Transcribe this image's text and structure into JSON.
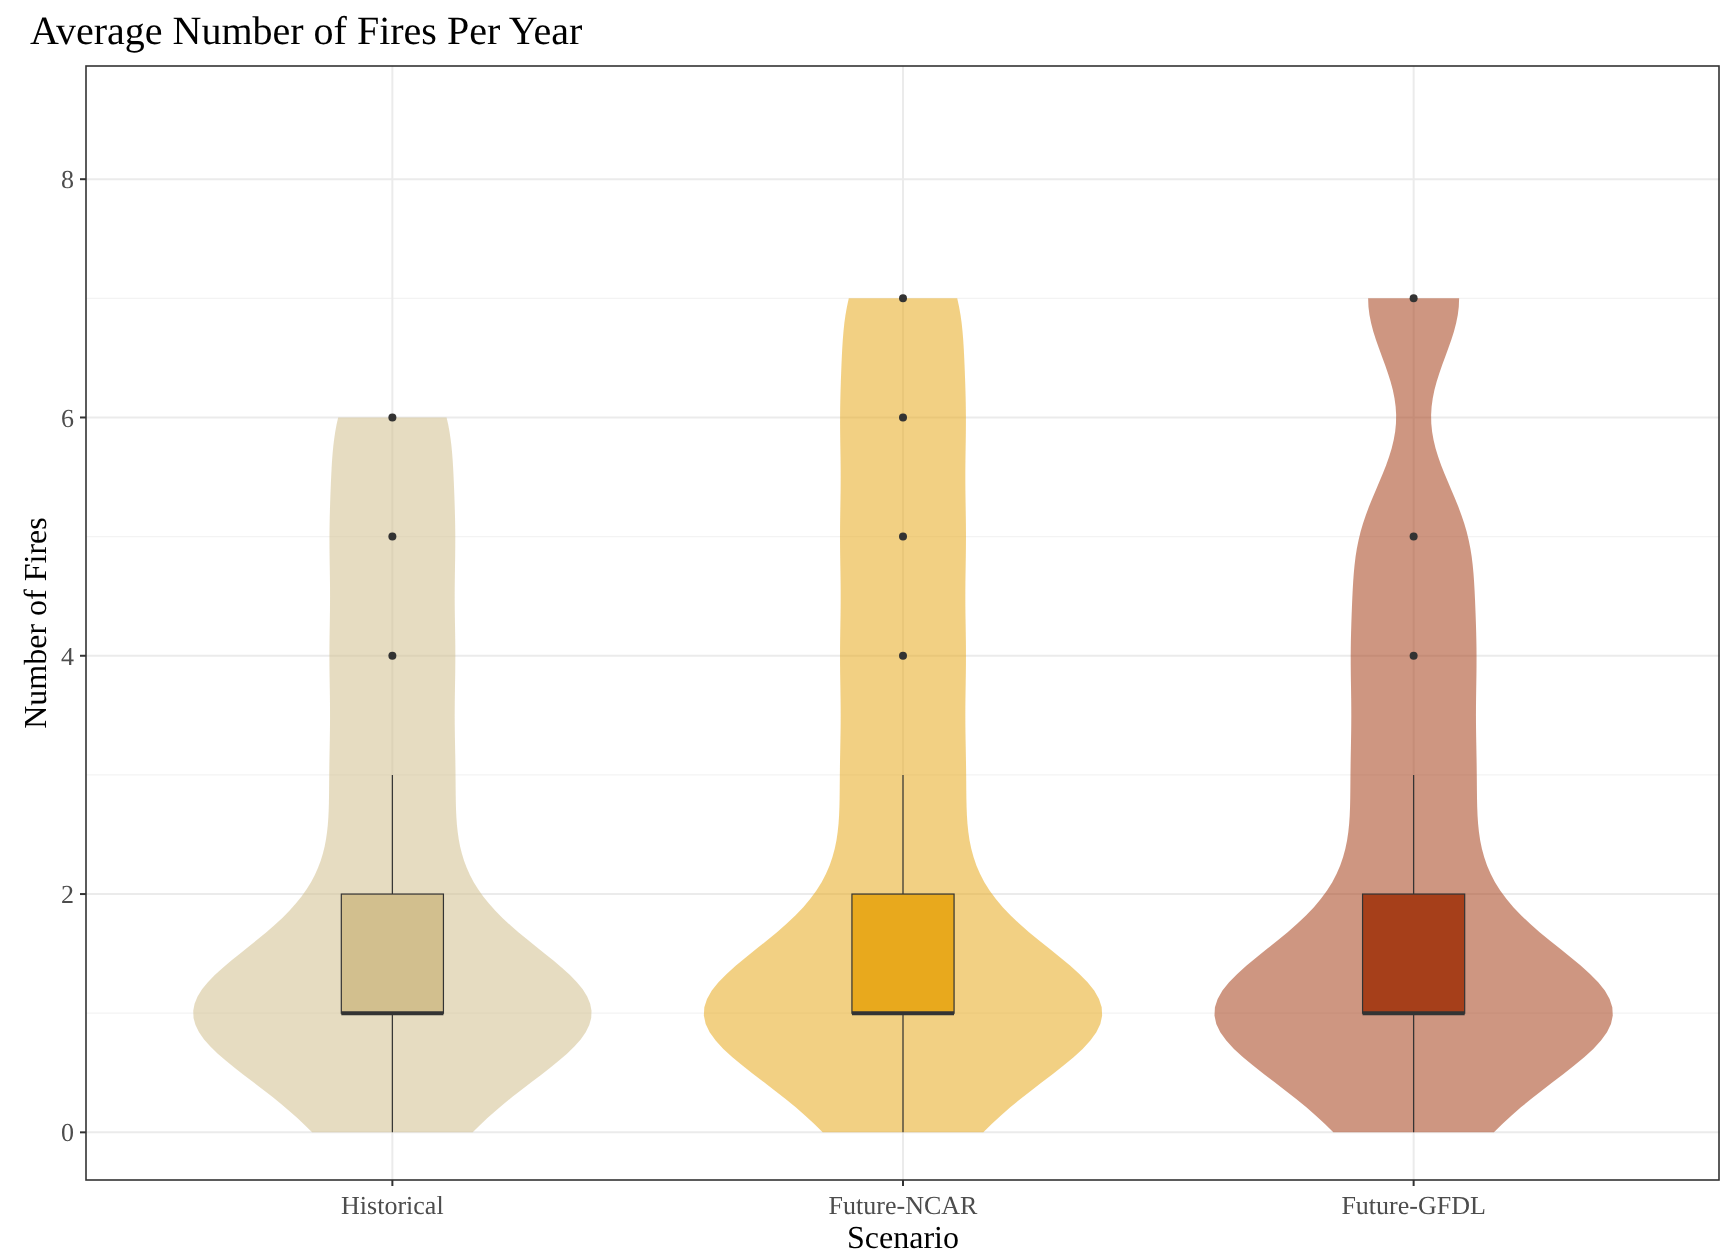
{
  "chart_data": {
    "type": "box",
    "title": "Average Number of Fires Per Year",
    "xlabel": "Scenario",
    "ylabel": "Number of Fires",
    "categories": [
      "Historical",
      "Future-NCAR",
      "Future-GFDL"
    ],
    "colors": [
      "#d2bf8e",
      "#e8a91d",
      "#a63f1a"
    ],
    "boxes": [
      {
        "low": 0,
        "q1": 1,
        "median": 1,
        "q3": 2,
        "high": 3,
        "outliers": [
          4,
          5,
          6
        ]
      },
      {
        "low": 0,
        "q1": 1,
        "median": 1,
        "q3": 2,
        "high": 3,
        "outliers": [
          4,
          5,
          6,
          7
        ]
      },
      {
        "low": 0,
        "q1": 1,
        "median": 1,
        "q3": 2,
        "high": 3,
        "outliers": [
          4,
          5,
          7
        ]
      }
    ],
    "ylim": [
      -0.4,
      8.95
    ],
    "yticks": [
      0,
      2,
      4,
      6,
      8
    ],
    "grid": true
  }
}
